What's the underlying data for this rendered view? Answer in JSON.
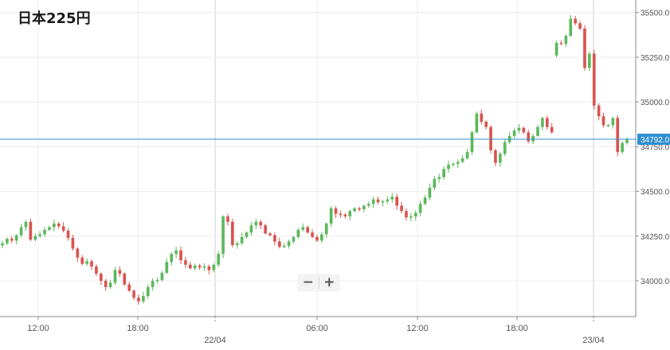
{
  "title": "日本225円",
  "zoom": {
    "out_symbol": "−",
    "in_symbol": "+"
  },
  "colors": {
    "up": "#5cb85c",
    "down": "#d9534f",
    "price_line": "#2f8fd0",
    "badge": "#2f8fd0"
  },
  "chart_data": {
    "type": "candlestick",
    "ylim": [
      33800,
      35570
    ],
    "y_ticks": [
      34000,
      34250,
      34500,
      34750,
      35000,
      35250,
      35500
    ],
    "y_tick_labels": [
      "34000.0",
      "34250.0",
      "34500.0",
      "34750.0",
      "35000.0",
      "35250.0",
      "35500.0"
    ],
    "x_tick_labels": [
      "12:00",
      "18:00",
      "06:00",
      "12:00",
      "18:00"
    ],
    "day_labels": [
      "22/04",
      "23/04"
    ],
    "current_price": 34792,
    "current_price_label": "34792.0",
    "closes": [
      34210,
      34235,
      34225,
      34255,
      34300,
      34330,
      34230,
      34250,
      34260,
      34285,
      34300,
      34320,
      34305,
      34280,
      34240,
      34180,
      34130,
      34095,
      34110,
      34080,
      34040,
      34000,
      33965,
      33990,
      34060,
      34040,
      33980,
      33945,
      33905,
      33885,
      33915,
      33965,
      34000,
      34005,
      34045,
      34105,
      34150,
      34170,
      34115,
      34090,
      34070,
      34085,
      34075,
      34080,
      34060,
      34090,
      34150,
      34360,
      34330,
      34200,
      34210,
      34245,
      34270,
      34310,
      34330,
      34310,
      34265,
      34255,
      34220,
      34190,
      34195,
      34220,
      34245,
      34285,
      34300,
      34270,
      34245,
      34225,
      34260,
      34320,
      34405,
      34375,
      34370,
      34360,
      34390,
      34405,
      34400,
      34420,
      34430,
      34455,
      34440,
      34445,
      34455,
      34470,
      34420,
      34390,
      34355,
      34360,
      34380,
      34430,
      34465,
      34520,
      34570,
      34580,
      34625,
      34650,
      34655,
      34665,
      34685,
      34720,
      34830,
      34935,
      34890,
      34860,
      34730,
      34660,
      34710,
      34775,
      34810,
      34840,
      34855,
      34830,
      34780,
      34810,
      34860,
      34910,
      34860,
      34830,
      35330,
      35325,
      35370,
      35465,
      35440,
      35410,
      35190,
      35270,
      34980,
      34920,
      34870,
      34870,
      34910,
      34720,
      34770,
      34790
    ],
    "gaps": [],
    "session_break_index": 118
  }
}
